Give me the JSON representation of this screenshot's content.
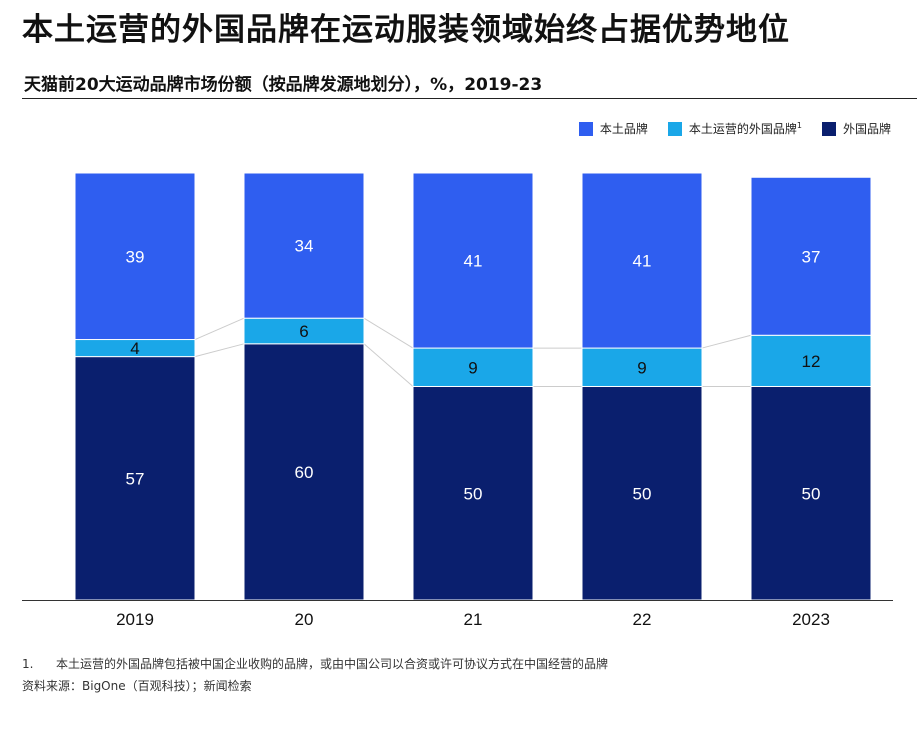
{
  "page": {
    "headline": "本土运营的外国品牌在运动服装领域始终占据优势地位",
    "subtitle": "天猫前20大运动品牌市场份额（按品牌发源地划分），%，2019-23",
    "footnote_number": "1.",
    "footnote_text": "本土运营的外国品牌包括被中国企业收购的品牌，或由中国公司以合资或许可协议方式在中国经营的品牌",
    "source": "资料来源：BigOne（百观科技）；新闻检索"
  },
  "colors": {
    "domestic": "#2f5ef0",
    "domestic_operated_foreign": "#1aa7e8",
    "foreign": "#0a1f6e",
    "connector": "#cccccc",
    "axis": "#333333"
  },
  "legend": [
    {
      "key": "domestic",
      "label": "本土品牌",
      "sup": ""
    },
    {
      "key": "domestic_operated_foreign",
      "label": "本土运营的外国品牌",
      "sup": "1"
    },
    {
      "key": "foreign",
      "label": "外国品牌",
      "sup": ""
    }
  ],
  "chart_data": {
    "type": "bar",
    "stacked": true,
    "normalized": true,
    "categories": [
      "2019",
      "20",
      "21",
      "22",
      "2023"
    ],
    "series": [
      {
        "name": "外国品牌",
        "key": "foreign",
        "values": [
          57,
          60,
          50,
          50,
          50
        ]
      },
      {
        "name": "本土运营的外国品牌",
        "key": "domestic_operated_foreign",
        "values": [
          4,
          6,
          9,
          9,
          12
        ]
      },
      {
        "name": "本土品牌",
        "key": "domestic",
        "values": [
          39,
          34,
          41,
          41,
          37
        ]
      }
    ],
    "ylim": [
      0,
      100
    ],
    "unit": "%"
  }
}
